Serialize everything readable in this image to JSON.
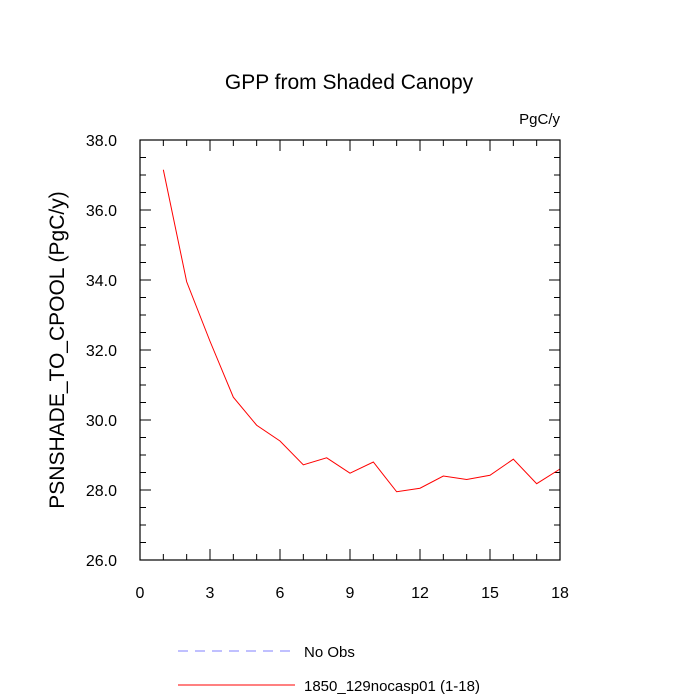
{
  "chart_data": {
    "type": "line",
    "title": "GPP from Shaded Canopy",
    "units_label": "PgC/y",
    "xlabel": "",
    "ylabel": "PSNSHADE_TO_CPOOL  (PgC/y)",
    "xlim": [
      0,
      18
    ],
    "ylim": [
      26,
      38
    ],
    "x_ticks": [
      0,
      3,
      6,
      9,
      12,
      15,
      18
    ],
    "x_tick_labels": [
      "0",
      "3",
      "6",
      "9",
      "12",
      "15",
      "18"
    ],
    "y_ticks": [
      26,
      28,
      30,
      32,
      34,
      36,
      38
    ],
    "y_tick_labels": [
      "26.0",
      "28.0",
      "30.0",
      "32.0",
      "34.0",
      "36.0",
      "38.0"
    ],
    "series": [
      {
        "name": "1850_129nocasp01 (1-18)",
        "color": "#ff0000",
        "style": "solid",
        "x": [
          1,
          2,
          3,
          4,
          5,
          6,
          7,
          8,
          9,
          10,
          11,
          12,
          13,
          14,
          15,
          16,
          17,
          18
        ],
        "values": [
          37.15,
          33.95,
          32.25,
          30.65,
          29.85,
          29.4,
          28.72,
          28.92,
          28.48,
          28.8,
          27.95,
          28.05,
          28.4,
          28.3,
          28.42,
          28.88,
          28.18,
          28.6
        ]
      }
    ],
    "legend": [
      {
        "label": "No Obs",
        "color": "#8080ff",
        "style": "dashed"
      },
      {
        "label": "1850_129nocasp01 (1-18)",
        "color": "#ff0000",
        "style": "solid"
      }
    ],
    "legend_position": "bottom"
  }
}
